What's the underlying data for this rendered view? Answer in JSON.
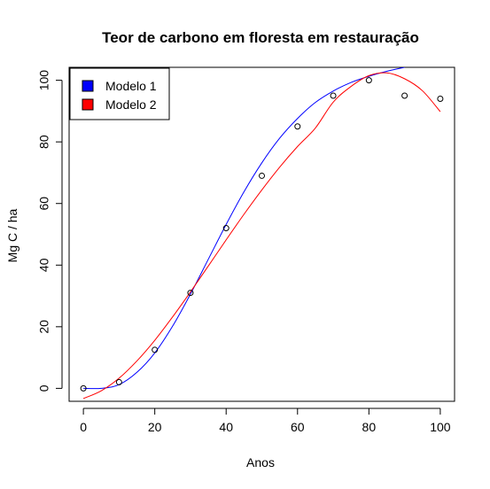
{
  "chart_data": {
    "type": "scatter",
    "title": "Teor de carbono em floresta em restauração",
    "xlabel": "Anos",
    "ylabel": "Mg C / ha",
    "xlim": [
      -4,
      104
    ],
    "ylim": [
      -4.2,
      104.2
    ],
    "xticks": [
      0,
      20,
      40,
      60,
      80,
      100
    ],
    "yticks": [
      0,
      20,
      40,
      60,
      80,
      100
    ],
    "grid": false,
    "legend_position": "top-left",
    "points": {
      "x": [
        0,
        10,
        20,
        30,
        40,
        50,
        60,
        70,
        80,
        90,
        100
      ],
      "y": [
        0,
        2,
        12.5,
        31,
        52,
        69,
        85,
        95,
        100,
        95,
        94
      ]
    },
    "series": [
      {
        "name": "Modelo 1",
        "type": "line",
        "color": "#0000ff",
        "x": [
          0,
          5,
          10,
          15,
          20,
          25,
          30,
          35,
          40,
          45,
          50,
          55,
          60,
          65,
          70,
          75,
          80,
          85,
          90
        ],
        "y": [
          0,
          0,
          1.2,
          5.2,
          11.5,
          20.2,
          30.6,
          41.9,
          53.2,
          63.8,
          73.2,
          81.2,
          87.6,
          92.8,
          96.5,
          99.3,
          101.3,
          102.9,
          104.2
        ]
      },
      {
        "name": "Modelo 2",
        "type": "line",
        "color": "#ff0000",
        "x": [
          0,
          5,
          10,
          15,
          20,
          25,
          30,
          35,
          40,
          45,
          50,
          55,
          60,
          65,
          70,
          75,
          80,
          85,
          90,
          95,
          100
        ],
        "y": [
          -3.3,
          -0.8,
          3.3,
          8.9,
          15.6,
          23.2,
          31.3,
          39.7,
          48.2,
          56.5,
          64.4,
          71.8,
          78.5,
          84.5,
          92.9,
          98.0,
          101.5,
          102.4,
          100.5,
          96.6,
          89.8
        ]
      }
    ]
  }
}
